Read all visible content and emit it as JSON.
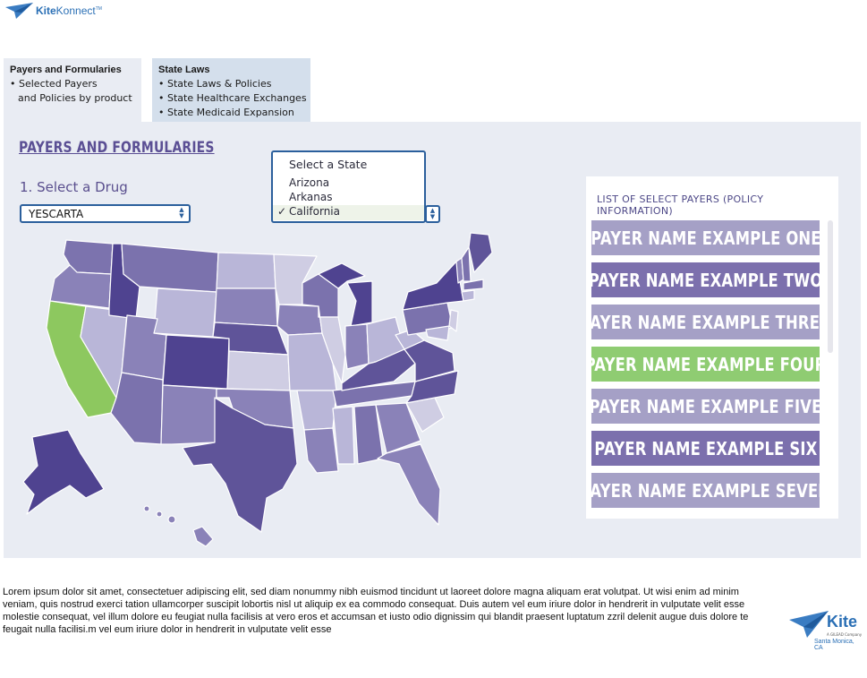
{
  "header": {
    "logo_text_bold": "Kite",
    "logo_text": "Konnect",
    "logo_mark": "TM"
  },
  "tabs": [
    {
      "title": "Payers and Formularies",
      "items": [
        "Selected Payers",
        "and Policies by product"
      ]
    },
    {
      "title": "State Laws",
      "items": [
        "State Laws & Policies",
        "State Healthcare Exchanges",
        "State Medicaid Expansion"
      ]
    }
  ],
  "main": {
    "section_title": "PAYERS AND FORMULARIES",
    "drug_label": "1. Select a Drug",
    "drug_value": "YESCARTA",
    "state_select": {
      "heading": "Select a State",
      "options": [
        "Arizona",
        "Arkanas",
        "California"
      ],
      "selected": "California",
      "check": "✓"
    }
  },
  "payers": {
    "heading": "LIST OF SELECT PAYERS (POLICY INFORMATION)",
    "items": [
      {
        "label": "PAYER NAME EXAMPLE ONE",
        "color": "#a5a0c6"
      },
      {
        "label": "PAYER NAME EXAMPLE TWO",
        "color": "#7c70ad"
      },
      {
        "label": "PAYER NAME EXAMPLE THREE",
        "color": "#a5a0c6"
      },
      {
        "label": "PAYER NAME EXAMPLE FOUR",
        "color": "#8fcc72"
      },
      {
        "label": "PAYER NAME EXAMPLE FIVE",
        "color": "#a5a0c6"
      },
      {
        "label": "PAYER NAME EXAMPLE SIX",
        "color": "#7c70ad"
      },
      {
        "label": "PAYER NAME EXAMPLE SEVEN",
        "color": "#a5a0c6"
      }
    ]
  },
  "footer": {
    "text": "Lorem ipsum dolor sit amet, consectetuer adipiscing elit, sed diam nonummy nibh euismod tincidunt ut laoreet dolore magna aliquam erat volutpat. Ut wisi enim ad minim veniam, quis nostrud exerci tation ullamcorper suscipit lobortis nisl ut aliquip ex ea commodo consequat. Duis autem vel eum iriure dolor in hendrerit in vulputate velit esse molestie consequat, vel illum dolore eu feugiat nulla facilisis at vero eros et accumsan et iusto odio dignissim qui blandit praesent luptatum zzril delenit augue duis dolore te feugait nulla facilisi.m vel eum iriure dolor in hendrerit in vulputate velit esse",
    "brand": "Kite",
    "brand_sub": "A GILEAD Company",
    "location": "Santa Monica, CA"
  },
  "colors": {
    "accent": "#5b4f94",
    "selected_state": "#8dc85f",
    "panel_bg": "#e9ecf3",
    "brand_blue": "#2a6fb5"
  }
}
